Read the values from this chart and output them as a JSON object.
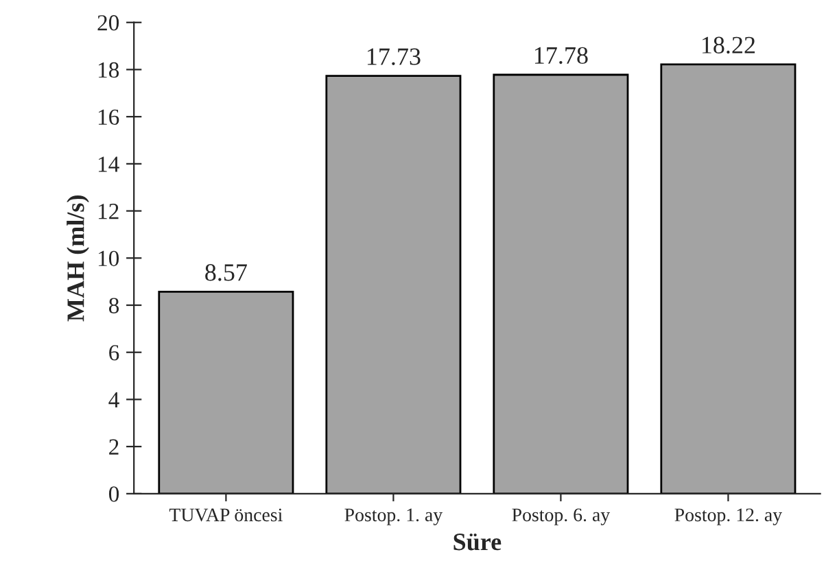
{
  "chart_data": {
    "type": "bar",
    "xlabel": "Süre",
    "ylabel": "MAH (ml/s)",
    "categories": [
      "TUVAP öncesi",
      "Postop. 1. ay",
      "Postop. 6. ay",
      "Postop. 12. ay"
    ],
    "values": [
      8.57,
      17.73,
      17.78,
      18.22
    ],
    "color": "#a3a3a3",
    "ylim": [
      0,
      20
    ],
    "yticks": [
      0,
      2,
      4,
      6,
      8,
      10,
      12,
      14,
      16,
      18,
      20
    ],
    "grid": false,
    "data_labels": true
  }
}
